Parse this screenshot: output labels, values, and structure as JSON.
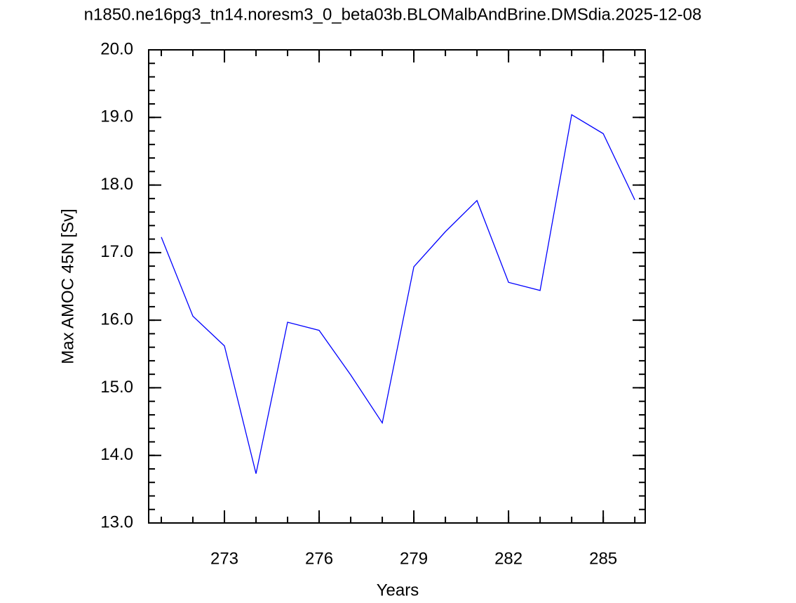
{
  "chart_data": {
    "type": "line",
    "title": "n1850.ne16pg3_tn14.noresm3_0_beta03b.BLOMalbAndBrine.DMSdia.2025-12-08",
    "xlabel": "Years",
    "ylabel": "Max AMOC 45N [Sv]",
    "x": [
      271,
      272,
      273,
      274,
      275,
      276,
      277,
      278,
      279,
      280,
      281,
      282,
      283,
      284,
      285,
      286
    ],
    "series": [
      {
        "color": "#0000ff",
        "values": [
          17.23,
          16.06,
          15.62,
          13.73,
          15.97,
          15.85,
          15.19,
          14.48,
          16.79,
          17.31,
          17.77,
          16.56,
          16.44,
          19.04,
          18.76,
          17.78
        ]
      }
    ],
    "xlim": [
      270.6,
      286.33
    ],
    "ylim": [
      13.0,
      20.0
    ],
    "xticks": [
      273,
      276,
      279,
      282,
      285
    ],
    "yticks": [
      {
        "value": 13,
        "label": "13.0"
      },
      {
        "value": 14,
        "label": "14.0"
      },
      {
        "value": 15,
        "label": "15.0"
      },
      {
        "value": 16,
        "label": "16.0"
      },
      {
        "value": 17,
        "label": "17.0"
      },
      {
        "value": 18,
        "label": "18.0"
      },
      {
        "value": 19,
        "label": "19.0"
      },
      {
        "value": 20,
        "label": "20.0"
      }
    ]
  }
}
